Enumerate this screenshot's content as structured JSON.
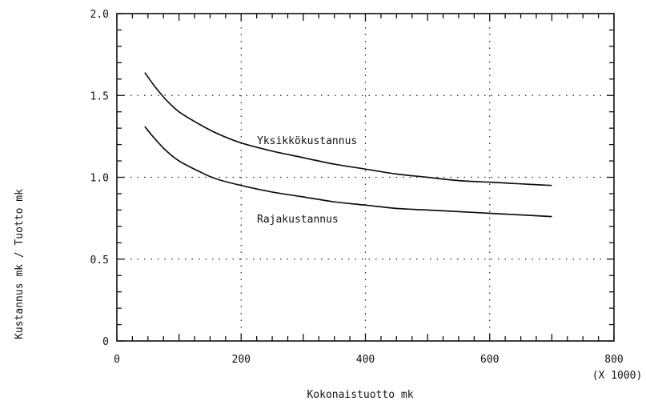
{
  "chart_data": {
    "type": "line",
    "xlabel": "Kokonaistuotto mk",
    "x_multiplier_label": "(X 1000)",
    "ylabel": "Kustannus mk / Tuotto mk",
    "xlim": [
      0,
      800
    ],
    "ylim": [
      0,
      2.0
    ],
    "x_ticks": [
      0,
      200,
      400,
      600,
      800
    ],
    "x_tick_labels": [
      "0",
      "200",
      "400",
      "600",
      "800"
    ],
    "y_ticks": [
      0,
      0.5,
      1.0,
      1.5,
      2.0
    ],
    "y_tick_labels": [
      "0",
      "0.5",
      "1.0",
      "1.5",
      "2.0"
    ],
    "grid": true,
    "legend": "inline-labels",
    "series": [
      {
        "name": "Yksikkökustannus",
        "x": [
          45,
          60,
          80,
          100,
          130,
          160,
          200,
          250,
          300,
          350,
          400,
          450,
          500,
          550,
          600,
          650,
          700
        ],
        "y": [
          1.64,
          1.56,
          1.47,
          1.4,
          1.33,
          1.27,
          1.21,
          1.16,
          1.12,
          1.08,
          1.05,
          1.02,
          1.0,
          0.98,
          0.97,
          0.96,
          0.95
        ]
      },
      {
        "name": "Rajakustannus",
        "x": [
          45,
          60,
          80,
          100,
          130,
          160,
          200,
          250,
          300,
          350,
          400,
          450,
          500,
          550,
          600,
          650,
          700
        ],
        "y": [
          1.31,
          1.24,
          1.16,
          1.1,
          1.04,
          0.99,
          0.95,
          0.91,
          0.88,
          0.85,
          0.83,
          0.81,
          0.8,
          0.79,
          0.78,
          0.77,
          0.76
        ]
      }
    ]
  }
}
